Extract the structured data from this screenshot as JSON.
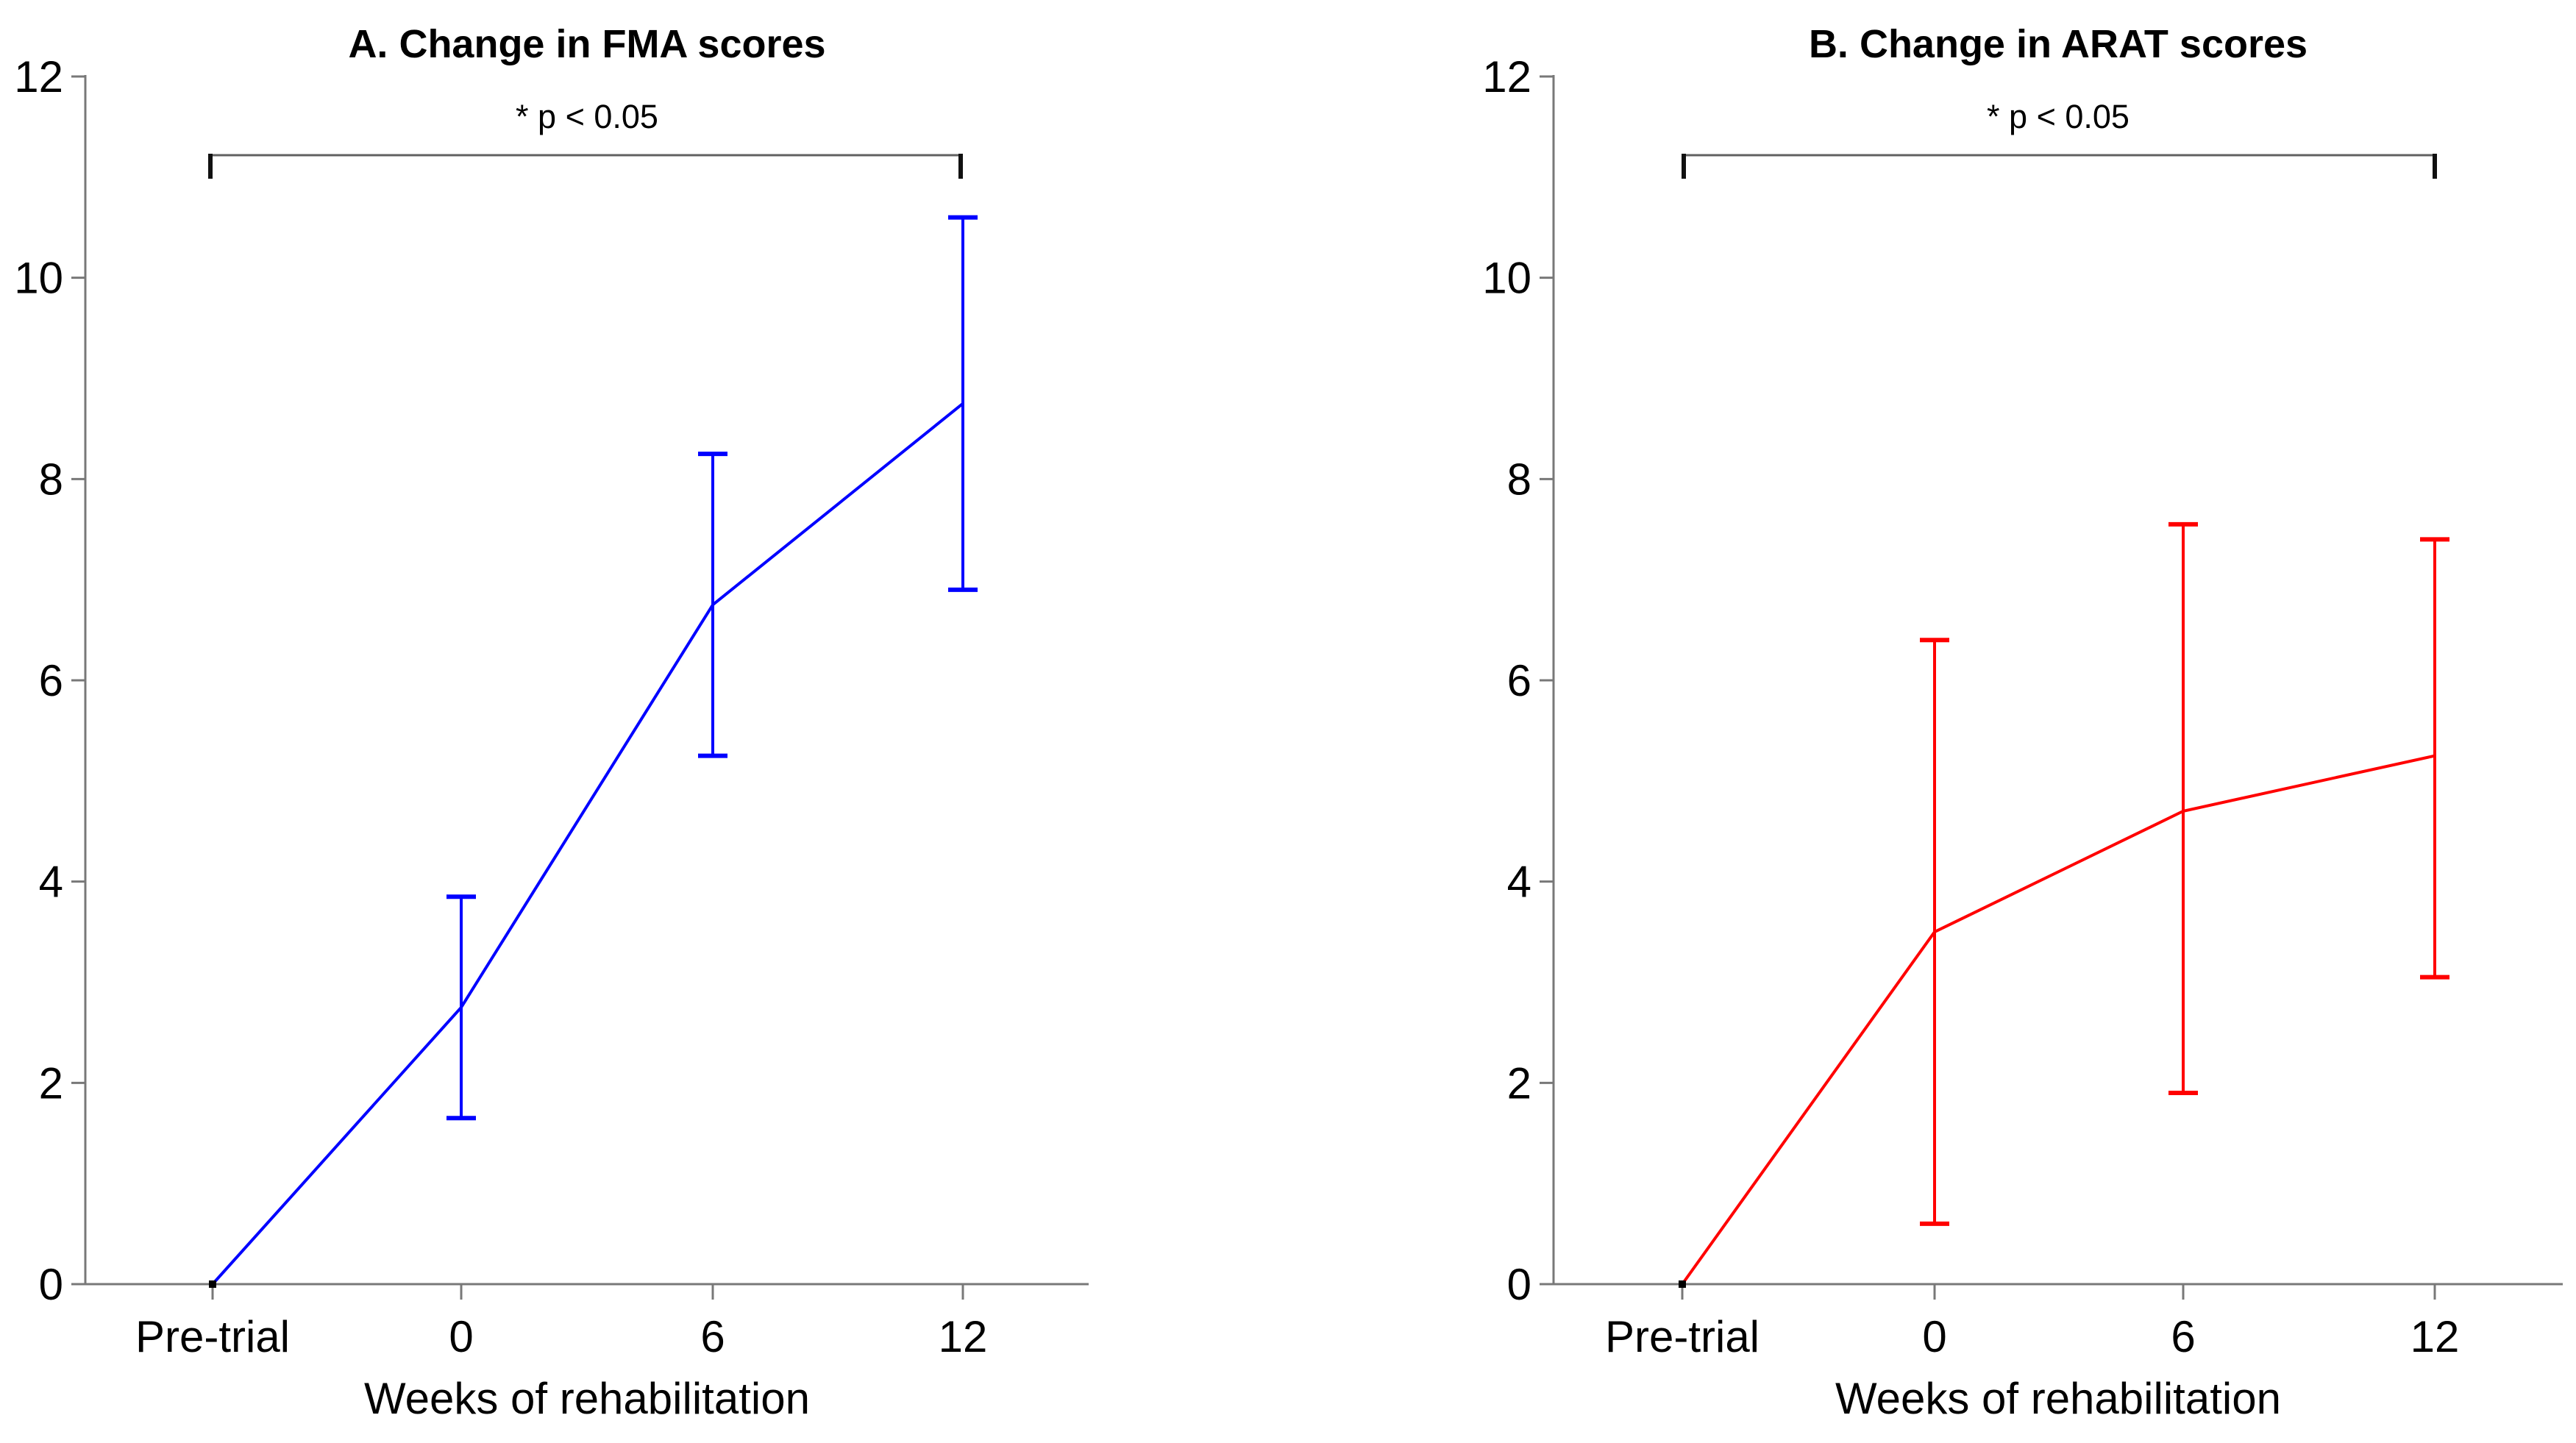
{
  "chart_data": [
    {
      "type": "line",
      "panel": "A",
      "title": "A. Change in FMA scores",
      "annotation": "* p < 0.05",
      "xlabel": "Weeks of rehabilitation",
      "ylabel": "",
      "series_name": "Change in FMA score",
      "series_color": "#0000FF",
      "categories": [
        "Pre-trial",
        "0",
        "6",
        "12"
      ],
      "values": [
        0,
        2.75,
        6.75,
        8.75
      ],
      "err_low": [
        null,
        1.65,
        5.25,
        6.9
      ],
      "err_high": [
        null,
        3.85,
        8.25,
        10.6
      ],
      "ylim": [
        0,
        12
      ],
      "yticks": [
        0,
        2,
        4,
        6,
        8,
        10,
        12
      ],
      "grid": false,
      "legend": "none",
      "significance_bracket": {
        "from": "Pre-trial",
        "to": "12",
        "label": "* p < 0.05"
      }
    },
    {
      "type": "line",
      "panel": "B",
      "title": "B. Change in ARAT scores",
      "annotation": "* p < 0.05",
      "xlabel": "Weeks of rehabilitation",
      "ylabel": "",
      "series_name": "Change in ARAT score",
      "series_color": "#FF0000",
      "categories": [
        "Pre-trial",
        "0",
        "6",
        "12"
      ],
      "values": [
        0,
        3.5,
        4.7,
        5.25
      ],
      "err_low": [
        null,
        0.6,
        1.9,
        3.05
      ],
      "err_high": [
        null,
        6.4,
        7.55,
        7.4
      ],
      "ylim": [
        0,
        12
      ],
      "yticks": [
        0,
        2,
        4,
        6,
        8,
        10,
        12
      ],
      "grid": false,
      "legend": "none",
      "significance_bracket": {
        "from": "Pre-trial",
        "to": "12",
        "label": "* p < 0.05"
      }
    }
  ],
  "style_colors": {
    "axis": "#787878",
    "bracket_line": "#606060",
    "bracket_end": "#111111",
    "text": "#000000",
    "background": "#ffffff"
  }
}
